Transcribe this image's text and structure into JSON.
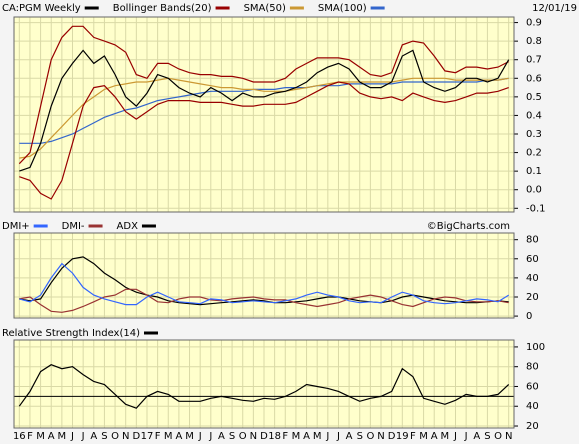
{
  "chart_data": [
    {
      "type": "line",
      "date": "12/01/19",
      "ylim": [
        -0.12,
        0.93
      ],
      "yticks": [
        0.9,
        0.8,
        0.7,
        0.6,
        0.5,
        0.4,
        0.3,
        0.2,
        0.1,
        {
          "value": 0,
          "label": "0.0"
        },
        -0.1
      ],
      "grid": true,
      "series": [
        {
          "name": "CA:PGM Weekly",
          "color": "#000000",
          "values": [
            0.1,
            0.12,
            0.25,
            0.45,
            0.6,
            0.68,
            0.75,
            0.68,
            0.72,
            0.62,
            0.5,
            0.45,
            0.52,
            0.62,
            0.6,
            0.55,
            0.52,
            0.5,
            0.55,
            0.52,
            0.48,
            0.52,
            0.5,
            0.5,
            0.52,
            0.53,
            0.55,
            0.58,
            0.63,
            0.66,
            0.68,
            0.65,
            0.58,
            0.55,
            0.55,
            0.58,
            0.72,
            0.75,
            0.58,
            0.55,
            0.53,
            0.55,
            0.6,
            0.6,
            0.58,
            0.6,
            0.7
          ]
        },
        {
          "name": "Bollinger Bands(20)",
          "color": "#990000",
          "values": [
            0.14,
            0.2,
            0.45,
            0.7,
            0.82,
            0.88,
            0.88,
            0.82,
            0.8,
            0.78,
            0.74,
            0.62,
            0.6,
            0.68,
            0.68,
            0.65,
            0.63,
            0.62,
            0.62,
            0.61,
            0.61,
            0.6,
            0.58,
            0.58,
            0.58,
            0.6,
            0.65,
            0.68,
            0.71,
            0.71,
            0.71,
            0.7,
            0.66,
            0.62,
            0.61,
            0.63,
            0.78,
            0.8,
            0.79,
            0.72,
            0.64,
            0.63,
            0.66,
            0.66,
            0.65,
            0.66,
            0.69
          ],
          "lower": [
            0.07,
            0.05,
            -0.02,
            -0.05,
            0.05,
            0.25,
            0.45,
            0.55,
            0.56,
            0.5,
            0.42,
            0.38,
            0.42,
            0.46,
            0.48,
            0.48,
            0.48,
            0.47,
            0.47,
            0.47,
            0.46,
            0.45,
            0.45,
            0.46,
            0.46,
            0.46,
            0.47,
            0.5,
            0.53,
            0.56,
            0.58,
            0.57,
            0.52,
            0.5,
            0.49,
            0.5,
            0.48,
            0.52,
            0.5,
            0.48,
            0.47,
            0.48,
            0.5,
            0.52,
            0.52,
            0.53,
            0.55
          ]
        },
        {
          "name": "SMA(50)",
          "color": "#cc9933",
          "values": [
            0.17,
            0.18,
            0.22,
            0.28,
            0.34,
            0.4,
            0.46,
            0.5,
            0.54,
            0.56,
            0.57,
            0.58,
            0.58,
            0.59,
            0.6,
            0.59,
            0.58,
            0.57,
            0.56,
            0.55,
            0.55,
            0.54,
            0.54,
            0.53,
            0.53,
            0.53,
            0.54,
            0.55,
            0.56,
            0.57,
            0.58,
            0.58,
            0.58,
            0.58,
            0.58,
            0.58,
            0.59,
            0.6,
            0.6,
            0.6,
            0.6,
            0.59,
            0.59,
            0.59,
            0.59,
            0.59,
            0.6
          ]
        },
        {
          "name": "SMA(100)",
          "color": "#3366cc",
          "values": [
            0.25,
            0.25,
            0.25,
            0.26,
            0.28,
            0.3,
            0.33,
            0.36,
            0.39,
            0.41,
            0.43,
            0.44,
            0.46,
            0.48,
            0.49,
            0.5,
            0.51,
            0.52,
            0.53,
            0.53,
            0.53,
            0.53,
            0.54,
            0.54,
            0.54,
            0.55,
            0.55,
            0.55,
            0.56,
            0.56,
            0.56,
            0.57,
            0.57,
            0.57,
            0.57,
            0.57,
            0.58,
            0.58,
            0.58,
            0.58,
            0.58,
            0.58,
            0.58,
            0.58,
            0.59,
            0.59,
            0.6
          ]
        }
      ]
    },
    {
      "type": "line",
      "credit": "©BigCharts.com",
      "ylim": [
        -2,
        87
      ],
      "yticks": [
        80,
        60,
        40,
        20,
        0
      ],
      "grid": true,
      "series": [
        {
          "name": "DMI+",
          "color": "#3366ff",
          "values": [
            18,
            15,
            22,
            40,
            55,
            45,
            30,
            22,
            18,
            15,
            12,
            12,
            20,
            25,
            20,
            15,
            14,
            13,
            18,
            17,
            14,
            15,
            16,
            15,
            14,
            16,
            18,
            22,
            25,
            22,
            20,
            16,
            14,
            15,
            14,
            20,
            25,
            22,
            16,
            14,
            13,
            14,
            16,
            18,
            17,
            15,
            22
          ]
        },
        {
          "name": "DMI-",
          "color": "#993333",
          "values": [
            18,
            20,
            12,
            5,
            4,
            6,
            10,
            15,
            20,
            22,
            28,
            28,
            22,
            15,
            14,
            18,
            20,
            20,
            17,
            16,
            18,
            19,
            20,
            18,
            17,
            17,
            14,
            12,
            10,
            12,
            14,
            18,
            20,
            22,
            20,
            16,
            12,
            10,
            14,
            18,
            20,
            19,
            16,
            15,
            15,
            16,
            14
          ]
        },
        {
          "name": "ADX",
          "color": "#000000",
          "values": [
            18,
            16,
            18,
            35,
            50,
            60,
            62,
            55,
            45,
            38,
            30,
            25,
            22,
            20,
            16,
            14,
            13,
            12,
            13,
            14,
            15,
            16,
            17,
            16,
            14,
            14,
            15,
            16,
            18,
            20,
            20,
            18,
            16,
            15,
            14,
            16,
            20,
            22,
            20,
            18,
            16,
            15,
            14,
            14,
            15,
            16,
            15
          ]
        }
      ]
    },
    {
      "type": "line",
      "categories": [
        "16",
        "F",
        "M",
        "A",
        "M",
        "J",
        "J",
        "A",
        "S",
        "O",
        "N",
        "D",
        "17",
        "F",
        "M",
        "A",
        "M",
        "J",
        "J",
        "A",
        "S",
        "O",
        "N",
        "D",
        "18",
        "F",
        "M",
        "A",
        "M",
        "J",
        "J",
        "A",
        "S",
        "O",
        "N",
        "D",
        "19",
        "F",
        "M",
        "A",
        "M",
        "J",
        "J",
        "A",
        "S",
        "O",
        "N"
      ],
      "ylim": [
        18,
        107
      ],
      "yticks": [
        100,
        80,
        60,
        40,
        20
      ],
      "grid": true,
      "hline": 50,
      "series": [
        {
          "name": "Relative Strength Index(14)",
          "color": "#000000",
          "values": [
            40,
            55,
            75,
            82,
            78,
            80,
            72,
            65,
            62,
            52,
            42,
            38,
            50,
            55,
            52,
            45,
            45,
            45,
            48,
            50,
            48,
            46,
            45,
            48,
            47,
            50,
            55,
            62,
            60,
            58,
            55,
            50,
            45,
            48,
            50,
            55,
            78,
            70,
            48,
            45,
            42,
            46,
            52,
            50,
            50,
            52,
            62
          ]
        }
      ]
    }
  ]
}
